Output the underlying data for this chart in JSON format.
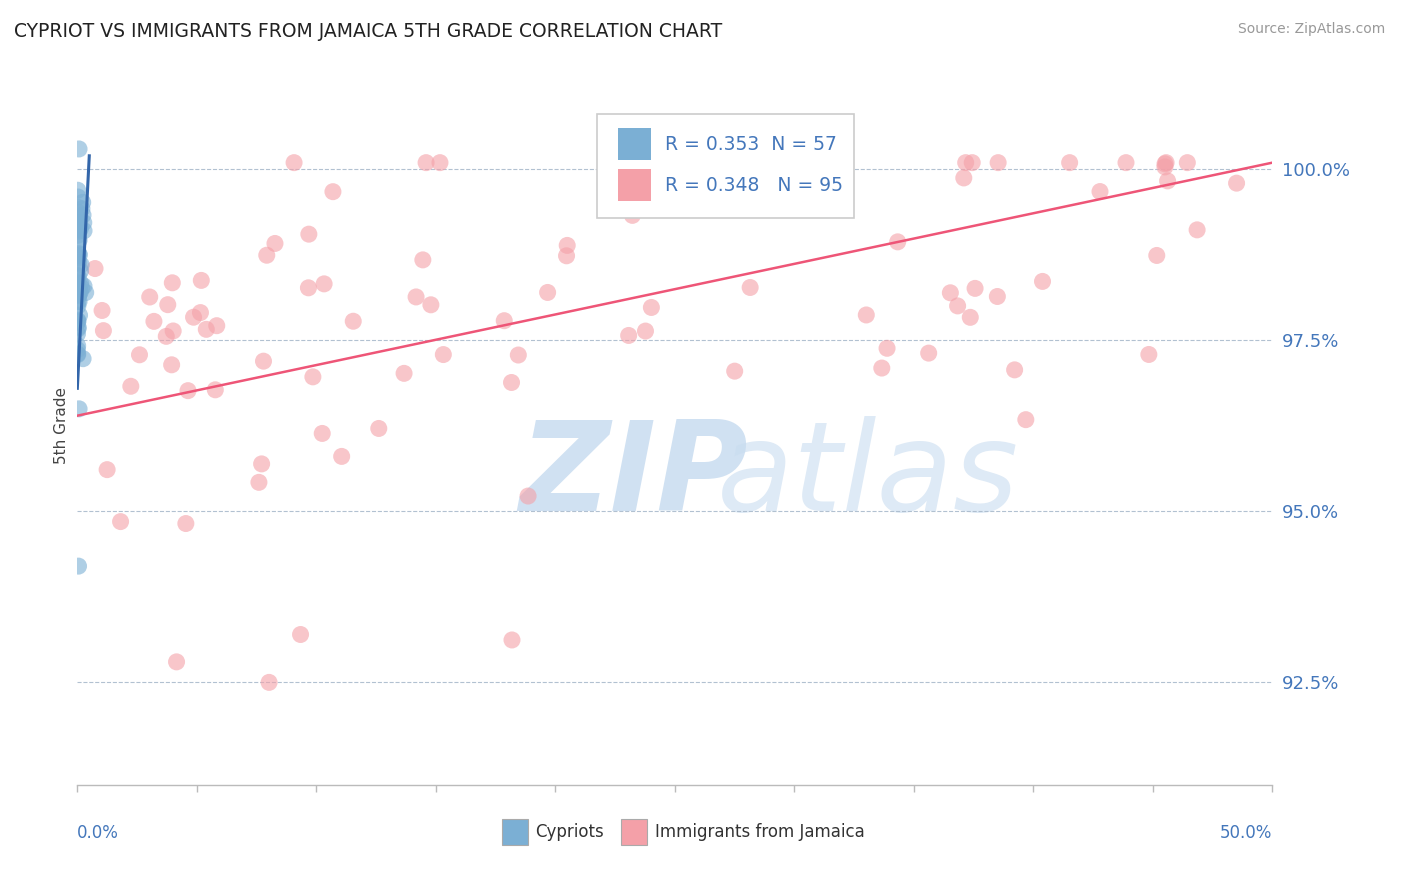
{
  "title": "CYPRIOT VS IMMIGRANTS FROM JAMAICA 5TH GRADE CORRELATION CHART",
  "source": "Source: ZipAtlas.com",
  "ylabel": "5th Grade",
  "ytick_values": [
    92.5,
    95.0,
    97.5,
    100.0
  ],
  "xlim": [
    0.0,
    50.0
  ],
  "ylim": [
    91.0,
    101.5
  ],
  "blue_color": "#7BAFD4",
  "pink_color": "#F4A0A8",
  "trendline_blue_color": "#3366AA",
  "trendline_pink_color": "#EE5577",
  "legend_blue_r": "R = 0.353",
  "legend_blue_n": "N = 57",
  "legend_pink_r": "R = 0.348",
  "legend_pink_n": "N = 95",
  "watermark_zip_color": "#C8DCF0",
  "watermark_atlas_color": "#C8DCF0",
  "n_blue": 57,
  "n_pink": 95,
  "blue_trend_x0": 0.0,
  "blue_trend_x1": 0.5,
  "blue_trend_y0": 96.8,
  "blue_trend_y1": 100.2,
  "pink_trend_x0": 0.0,
  "pink_trend_x1": 50.0,
  "pink_trend_y0": 96.4,
  "pink_trend_y1": 100.1
}
